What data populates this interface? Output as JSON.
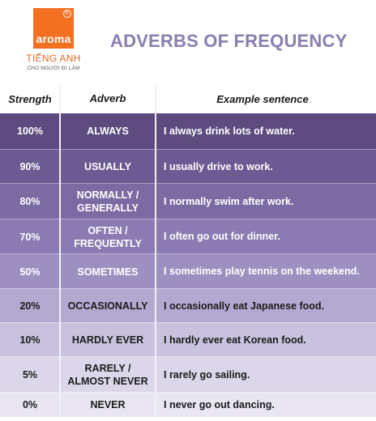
{
  "logo": {
    "brand": "aroma",
    "line1": "TIẾNG ANH",
    "line2": "CHO NGƯỜI ĐI LÀM"
  },
  "title": "ADVERBS OF FREQUENCY",
  "headers": {
    "strength": "Strength",
    "adverb": "Adverb",
    "example": "Example sentence"
  },
  "rows": [
    {
      "strength": "100%",
      "adverb_lines": [
        "ALWAYS"
      ],
      "sentence": "I always drink lots of water.",
      "bg": "#5d4b80",
      "fg": "#ffffff"
    },
    {
      "strength": "90%",
      "adverb_lines": [
        "USUALLY"
      ],
      "sentence": "I usually drive to work.",
      "bg": "#6c5a93",
      "fg": "#ffffff"
    },
    {
      "strength": "80%",
      "adverb_lines": [
        "NORMALLY /",
        "GENERALLY"
      ],
      "sentence": "I normally swim after work.",
      "bg": "#7c6ba3",
      "fg": "#ffffff"
    },
    {
      "strength": "70%",
      "adverb_lines": [
        "OFTEN /",
        "FREQUENTLY"
      ],
      "sentence": "I often go out for dinner.",
      "bg": "#8b7bb2",
      "fg": "#ffffff"
    },
    {
      "strength": "50%",
      "adverb_lines": [
        "SOMETIMES"
      ],
      "sentence": "I sometimes play tennis on the weekend.",
      "bg": "#9d90c0",
      "fg": "#ffffff"
    },
    {
      "strength": "20%",
      "adverb_lines": [
        "OCCASIONALLY"
      ],
      "sentence": "I occasionally  eat Japanese food.",
      "bg": "#b3a9d0",
      "fg": "#1a1a1a"
    },
    {
      "strength": "10%",
      "adverb_lines": [
        "HARDLY EVER"
      ],
      "sentence": "I hardly ever eat Korean food.",
      "bg": "#c9c2de",
      "fg": "#1a1a1a"
    },
    {
      "strength": "5%",
      "adverb_lines": [
        "RARELY /",
        "ALMOST NEVER"
      ],
      "sentence": "I rarely go sailing.",
      "bg": "#dbd6ea",
      "fg": "#1a1a1a"
    },
    {
      "strength": "0%",
      "adverb_lines": [
        "NEVER"
      ],
      "sentence": "I never go out dancing.",
      "bg": "#e9e6f2",
      "fg": "#1a1a1a"
    }
  ]
}
